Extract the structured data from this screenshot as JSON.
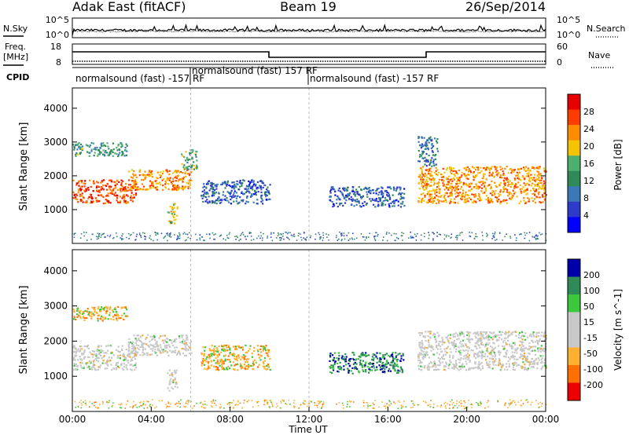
{
  "header": {
    "title_left": "Adak East (fitACF)",
    "title_center": "Beam 19",
    "title_right": "26/Sep/2014"
  },
  "strip_nsky": {
    "label_left": "N.Sky",
    "label_right": "N.Search",
    "ticks_left": [
      "10^5",
      "10^0"
    ],
    "ticks_right": [
      "10^5",
      "10^0"
    ]
  },
  "strip_freq": {
    "label_left_1": "Freq.",
    "label_left_2": "[MHz]",
    "label_right": "Nave",
    "ticks_left": [
      "18",
      "8"
    ],
    "ticks_right": [
      "60",
      "0"
    ]
  },
  "strip_cpid": {
    "label": "CPID",
    "segments": [
      {
        "text": "normalsound (fast) -157 RF",
        "start_h": 0,
        "end_h": 6
      },
      {
        "text": "normalsound (fast) 157 RF",
        "start_h": 6,
        "end_h": 12
      },
      {
        "text": "normalsound (fast) -157 RF",
        "start_h": 12,
        "end_h": 24
      }
    ]
  },
  "colors": {
    "power_scale": [
      "#0000ff",
      "#2c3cc8",
      "#3a78b8",
      "#2e8b57",
      "#4caf70",
      "#f5c400",
      "#ff8c00",
      "#ff3c00",
      "#e60000"
    ],
    "velocity_scale": [
      "#ee0000",
      "#ff7000",
      "#ffb030",
      "#c8c8c8",
      "#c8c8c8",
      "#3cc83c",
      "#2e8b57",
      "#0000aa"
    ]
  },
  "chart_data": [
    {
      "type": "heatmap",
      "title": "",
      "xlabel": "Time UT",
      "ylabel": "Slant Range [km]",
      "colorbar_label": "Power [dB]",
      "colorbar_ticks": [
        "28",
        "24",
        "20",
        "16",
        "12",
        "8",
        "4"
      ],
      "xlim_hours": [
        0,
        24
      ],
      "ylim_km": [
        0,
        4600
      ],
      "yticks": [
        "4000",
        "3000",
        "2000",
        "1000"
      ],
      "echo_regions": [
        {
          "t_start": 0.0,
          "t_end": 3.2,
          "r_min": 1200,
          "r_max": 1900,
          "power_db": 26
        },
        {
          "t_start": 0.0,
          "t_end": 2.8,
          "r_min": 2600,
          "r_max": 3000,
          "power_db": 12
        },
        {
          "t_start": 2.8,
          "t_end": 6.0,
          "r_min": 1600,
          "r_max": 2200,
          "power_db": 22
        },
        {
          "t_start": 5.5,
          "t_end": 6.3,
          "r_min": 2200,
          "r_max": 2800,
          "power_db": 14
        },
        {
          "t_start": 4.8,
          "t_end": 5.3,
          "r_min": 600,
          "r_max": 1200,
          "power_db": 18
        },
        {
          "t_start": 6.5,
          "t_end": 10.0,
          "r_min": 1200,
          "r_max": 1900,
          "power_db": 6
        },
        {
          "t_start": 13.0,
          "t_end": 16.8,
          "r_min": 1100,
          "r_max": 1700,
          "power_db": 6
        },
        {
          "t_start": 17.5,
          "t_end": 24.0,
          "r_min": 1200,
          "r_max": 2300,
          "power_db": 22
        },
        {
          "t_start": 17.5,
          "t_end": 18.5,
          "r_min": 2300,
          "r_max": 3200,
          "power_db": 8
        }
      ]
    },
    {
      "type": "heatmap",
      "title": "",
      "xlabel": "Time UT",
      "ylabel": "Slant Range [km]",
      "colorbar_label": "Velocity [m s^-1]",
      "colorbar_ticks": [
        "200",
        "100",
        "50",
        "15",
        "-15",
        "-50",
        "-100",
        "-200"
      ],
      "xlim_hours": [
        0,
        24
      ],
      "ylim_km": [
        0,
        4600
      ],
      "yticks": [
        "4000",
        "3000",
        "2000",
        "1000"
      ],
      "echo_regions": [
        {
          "t_start": 0.0,
          "t_end": 3.2,
          "r_min": 1200,
          "r_max": 1900,
          "velocity": 0
        },
        {
          "t_start": 0.0,
          "t_end": 2.8,
          "r_min": 2600,
          "r_max": 3000,
          "velocity": -40
        },
        {
          "t_start": 2.8,
          "t_end": 6.0,
          "r_min": 1600,
          "r_max": 2200,
          "velocity": 0
        },
        {
          "t_start": 4.8,
          "t_end": 5.3,
          "r_min": 600,
          "r_max": 1200,
          "velocity": 0
        },
        {
          "t_start": 6.5,
          "t_end": 10.0,
          "r_min": 1200,
          "r_max": 1900,
          "velocity": -40
        },
        {
          "t_start": 13.0,
          "t_end": 16.8,
          "r_min": 1100,
          "r_max": 1700,
          "velocity": 60
        },
        {
          "t_start": 17.5,
          "t_end": 24.0,
          "r_min": 1200,
          "r_max": 2300,
          "velocity": 0
        }
      ]
    }
  ],
  "xaxis": {
    "ticks": [
      "00:00",
      "04:00",
      "08:00",
      "12:00",
      "16:00",
      "20:00",
      "00:00"
    ],
    "label": "Time UT"
  }
}
